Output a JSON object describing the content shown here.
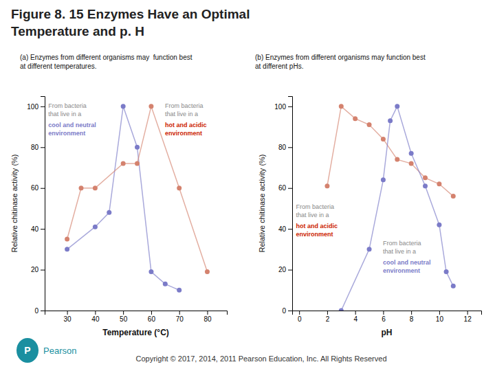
{
  "chart_data": [
    {
      "type": "line",
      "marker": "circle",
      "grid": false,
      "title": "Figure 8. 15 Enzymes Have an Optimal\nTemperature and p. H",
      "subtitle": "(a) Enzymes from different organisms may  function best\nat different temperatures.",
      "x_label": "Temperature (°C)",
      "y_label": "Relative chitinase activity (%)",
      "xlim": [
        22,
        87
      ],
      "ylim": [
        0,
        105
      ],
      "xticks": [
        30,
        40,
        50,
        60,
        70,
        80
      ],
      "yticks": [
        0,
        20,
        40,
        60,
        80,
        100
      ],
      "series": [
        {
          "color": "#7b7bc8",
          "x": [
            30,
            40,
            45,
            50,
            55,
            60,
            65,
            70
          ],
          "values": [
            30,
            41,
            48,
            100,
            80,
            19,
            13,
            10
          ]
        },
        {
          "color": "#d4826e",
          "x": [
            30,
            35,
            40,
            50,
            55,
            60,
            70,
            80
          ],
          "values": [
            35,
            60,
            60,
            72,
            72,
            100,
            60,
            19
          ]
        }
      ],
      "annotations": [
        {
          "text": "From bacteria\nthat live in a"
        },
        {
          "text": "cool and neutral\nenvironment",
          "color": "#7b7bc8"
        },
        {
          "text": "From bacteria\nthat live in a"
        },
        {
          "text": "hot and acidic\nenvironment",
          "color": "#cc2200"
        },
        {
          "text": "P",
          "color": "#1a8fa0"
        },
        {
          "text": "Pearson",
          "color": "#1a8fa0"
        },
        {
          "text": "Copyright © 2017, 2014, 2011 Pearson Education, Inc. All Rights Reserved"
        }
      ]
    },
    {
      "type": "line",
      "marker": "circle",
      "grid": false,
      "subtitle": "(b) Enzymes from different organisms may function best\nat different pHs.",
      "x_label": "pH",
      "y_label": "Relative chitinase activity (%)",
      "xlim": [
        -0.5,
        13
      ],
      "ylim": [
        0,
        105
      ],
      "xticks": [
        0,
        2,
        4,
        6,
        8,
        10,
        12
      ],
      "yticks": [
        0,
        20,
        40,
        60,
        80,
        100
      ],
      "series": [
        {
          "color": "#d4826e",
          "x": [
            2,
            3,
            4,
            5,
            6,
            7,
            8,
            9,
            10,
            11
          ],
          "values": [
            61,
            100,
            94,
            91,
            84,
            74,
            72,
            65,
            62,
            56
          ]
        },
        {
          "color": "#7b7bc8",
          "x": [
            3,
            5,
            6,
            6.5,
            7,
            8,
            9,
            10,
            10.5,
            11
          ],
          "values": [
            0,
            30,
            64,
            93,
            100,
            77,
            61,
            42,
            19,
            12
          ]
        }
      ],
      "annotations": [
        {
          "text": "From bacteria\nthat live in a"
        },
        {
          "text": "hot and acidic\nenvironment",
          "color": "#cc2200"
        },
        {
          "text": "From bacteria\nthat live in a"
        },
        {
          "text": "cool and neutral\nenvironment",
          "color": "#7b7bc8"
        }
      ]
    }
  ]
}
